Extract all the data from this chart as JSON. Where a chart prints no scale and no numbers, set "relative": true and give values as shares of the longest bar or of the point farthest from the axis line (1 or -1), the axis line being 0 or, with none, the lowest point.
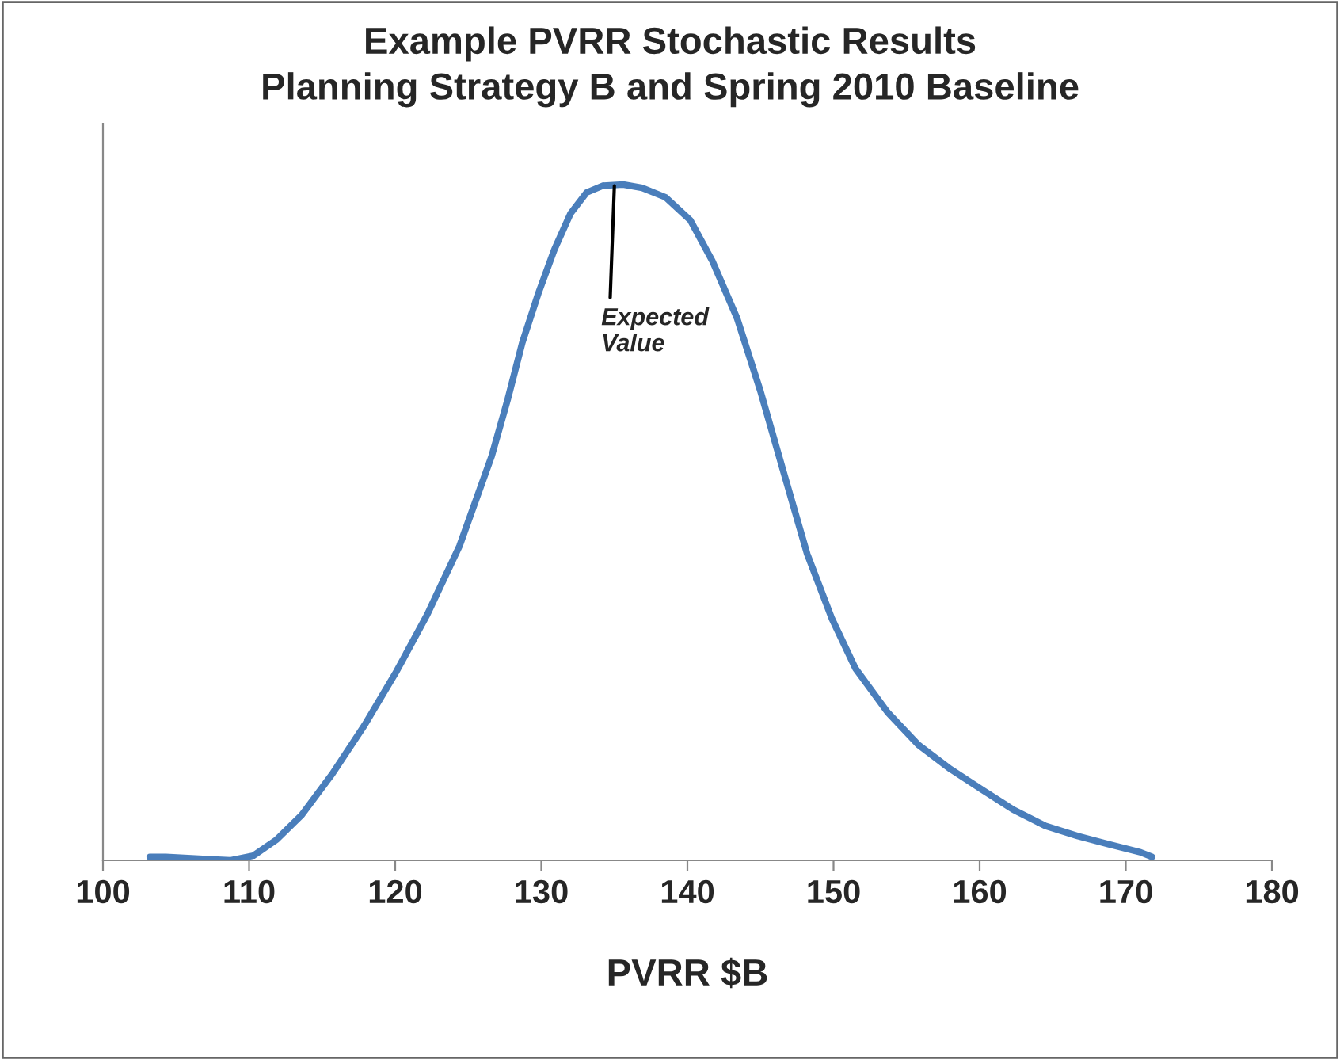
{
  "chart_data": {
    "type": "line",
    "title": "Example PVRR Stochastic Results\nPlanning Strategy B and Spring 2010 Baseline",
    "xlabel": "PVRR $B",
    "relative": true,
    "xlim": [
      100,
      180
    ],
    "xticks": [
      100,
      110,
      120,
      130,
      140,
      150,
      160,
      170,
      180
    ],
    "tick_labels": "x",
    "grid": false,
    "legend": false,
    "marker": "none",
    "line_style": "solid",
    "annotations": [
      {
        "text": "Expected\nValue",
        "x": 135,
        "y": 0.998
      }
    ],
    "series": [
      {
        "color": "#4a7ebb",
        "x": [
          103.2,
          104.3,
          108.7,
          110.3,
          111.9,
          113.6,
          115.7,
          117.9,
          120.1,
          122.2,
          124.4,
          126.6,
          127.7,
          128.7,
          129.8,
          130.9,
          132.0,
          133.1,
          134.2,
          135.6,
          136.9,
          138.5,
          140.2,
          141.7,
          143.4,
          145.0,
          146.6,
          148.2,
          149.9,
          151.5,
          153.7,
          155.8,
          158.0,
          160.2,
          162.3,
          164.5,
          166.7,
          168.8,
          171.0,
          171.8
        ],
        "values": [
          0.005,
          0.005,
          0.0,
          0.007,
          0.031,
          0.067,
          0.128,
          0.2,
          0.28,
          0.364,
          0.465,
          0.598,
          0.682,
          0.766,
          0.839,
          0.904,
          0.957,
          0.988,
          0.998,
          1.0,
          0.995,
          0.981,
          0.947,
          0.887,
          0.802,
          0.694,
          0.573,
          0.453,
          0.357,
          0.284,
          0.219,
          0.171,
          0.135,
          0.104,
          0.075,
          0.051,
          0.036,
          0.024,
          0.012,
          0.005
        ]
      }
    ]
  }
}
